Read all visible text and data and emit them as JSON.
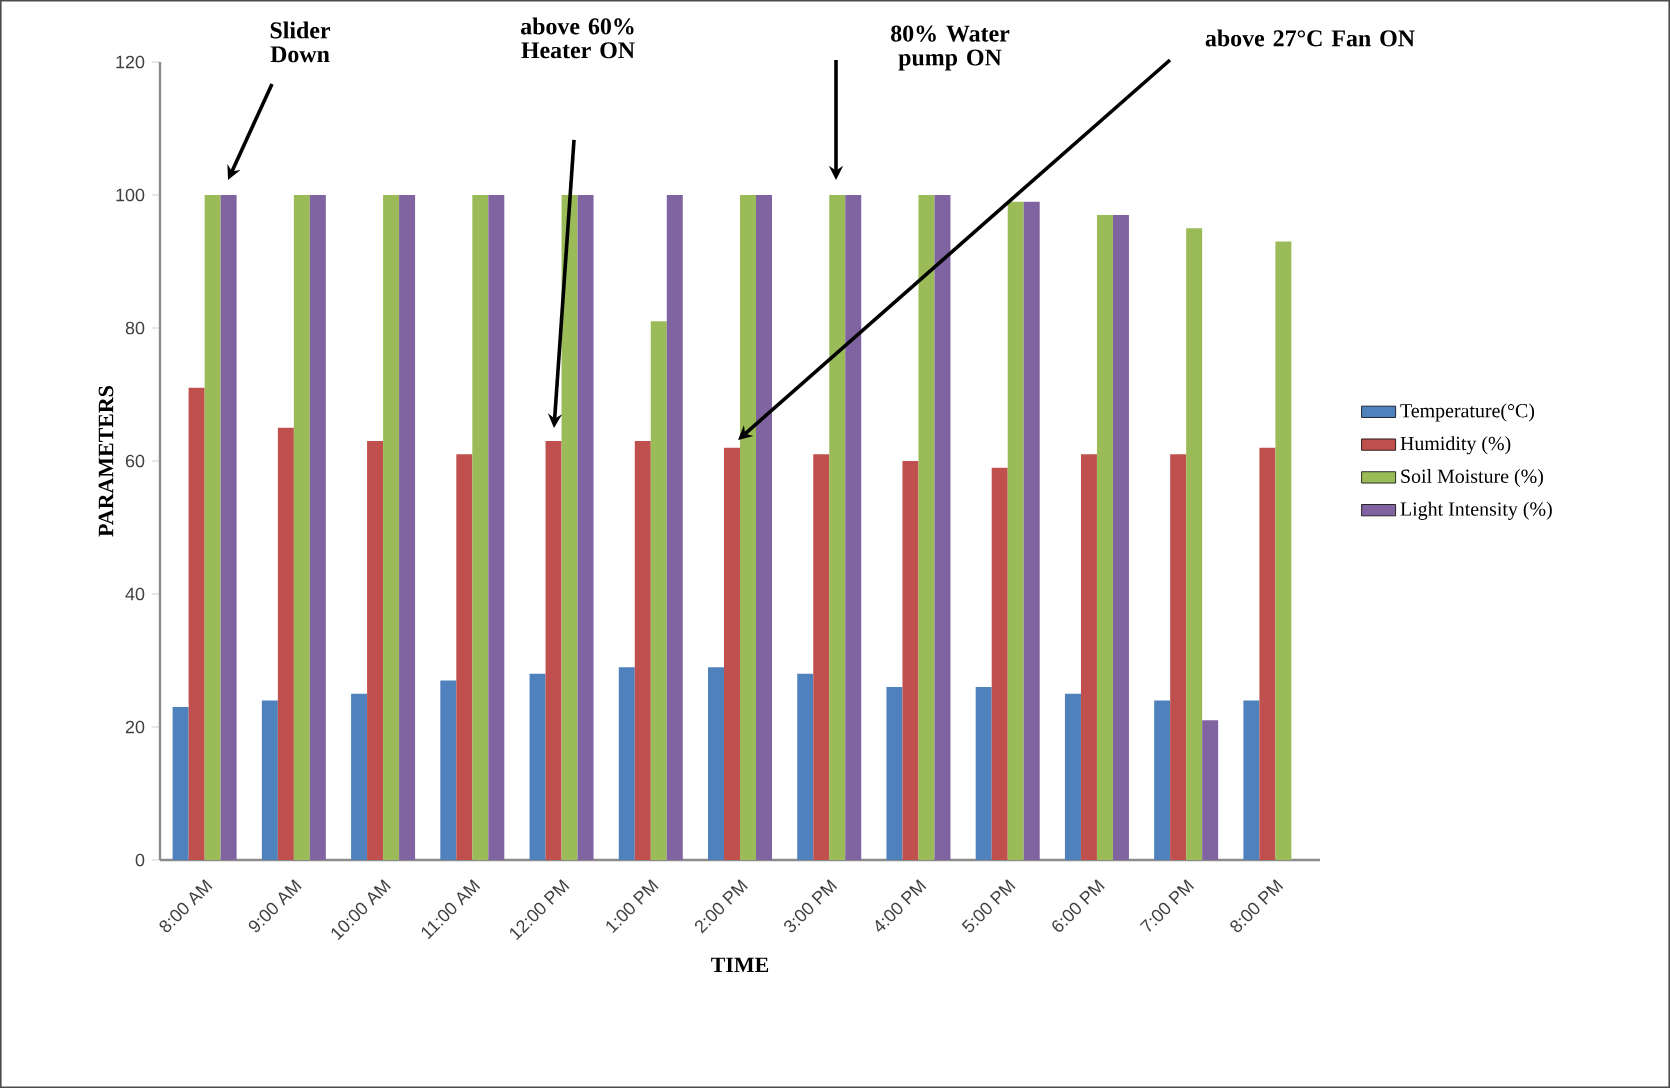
{
  "chart_data": {
    "type": "bar",
    "xlabel": "TIME",
    "ylabel": "PARAMETERS",
    "categories": [
      "8:00 AM",
      "9:00 AM",
      "10:00 AM",
      "11:00 AM",
      "12:00 PM",
      "1:00 PM",
      "2:00 PM",
      "3:00 PM",
      "4:00 PM",
      "5:00 PM",
      "6:00 PM",
      "7:00 PM",
      "8:00 PM"
    ],
    "series": [
      {
        "name": "Temperature(°C)",
        "color": "#4f81bd",
        "values": [
          23,
          24,
          25,
          27,
          28,
          29,
          29,
          28,
          26,
          26,
          25,
          24,
          24
        ]
      },
      {
        "name": "Humidity (%)",
        "color": "#c0504d",
        "values": [
          71,
          65,
          63,
          61,
          63,
          63,
          62,
          61,
          60,
          59,
          61,
          61,
          62
        ]
      },
      {
        "name": "Soil Moisture (%)",
        "color": "#9bbb59",
        "values": [
          100,
          100,
          100,
          100,
          100,
          81,
          100,
          100,
          100,
          99,
          97,
          95,
          93
        ]
      },
      {
        "name": "Light Intensity (%)",
        "color": "#8064a2",
        "values": [
          100,
          100,
          100,
          100,
          100,
          100,
          100,
          100,
          100,
          99,
          97,
          21,
          null
        ]
      }
    ],
    "ylim": [
      0,
      120
    ],
    "yticks": [
      0,
      20,
      40,
      60,
      80,
      100,
      120
    ],
    "grid": false,
    "legend": "right",
    "annotations": [
      "Slider Down",
      "above 60% Heater ON",
      "80% Water pump ON",
      "above 27°C Fan ON"
    ]
  }
}
